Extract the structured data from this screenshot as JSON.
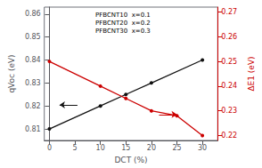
{
  "chart_data": {
    "type": "line",
    "xlabel": "DCT (%)",
    "ylabel": "qVoc (eV)",
    "y2label": "ΔE1 (eV)",
    "xlim": [
      -1,
      33
    ],
    "xticks": [
      0,
      5,
      10,
      15,
      20,
      25,
      30
    ],
    "ylim": [
      0.805,
      0.863
    ],
    "yticks": [
      0.81,
      0.82,
      0.83,
      0.84,
      0.85,
      0.86
    ],
    "y2lim": [
      0.218,
      0.272
    ],
    "y2ticks": [
      0.22,
      0.23,
      0.24,
      0.25,
      0.26,
      0.27
    ],
    "grid": false,
    "series": [
      {
        "x": [
          0,
          10,
          15,
          20,
          30
        ],
        "values": [
          0.81,
          0.82,
          0.825,
          0.83,
          0.84
        ],
        "color": "#111111",
        "marker": "circle",
        "axis": "y"
      },
      {
        "x": [
          0,
          10,
          15,
          20,
          25,
          30
        ],
        "values": [
          0.25,
          0.24,
          0.235,
          0.23,
          0.228,
          0.22
        ],
        "color": "#cc0000",
        "marker": "circle",
        "axis": "y2"
      }
    ],
    "annotations": [
      {
        "text": "PFBCNT10  x=0.1\nPFBCNT20  x=0.2\nPFBCNT30  x=0.3"
      },
      {
        "from": [
          5.5,
          0.8205
        ],
        "to": [
          2.0,
          0.8205
        ],
        "axis": "y",
        "color": "#111111"
      },
      {
        "from": [
          21.5,
          0.2285
        ],
        "to": [
          25.0,
          0.2285
        ],
        "axis": "y2",
        "color": "#cc0000"
      }
    ]
  }
}
